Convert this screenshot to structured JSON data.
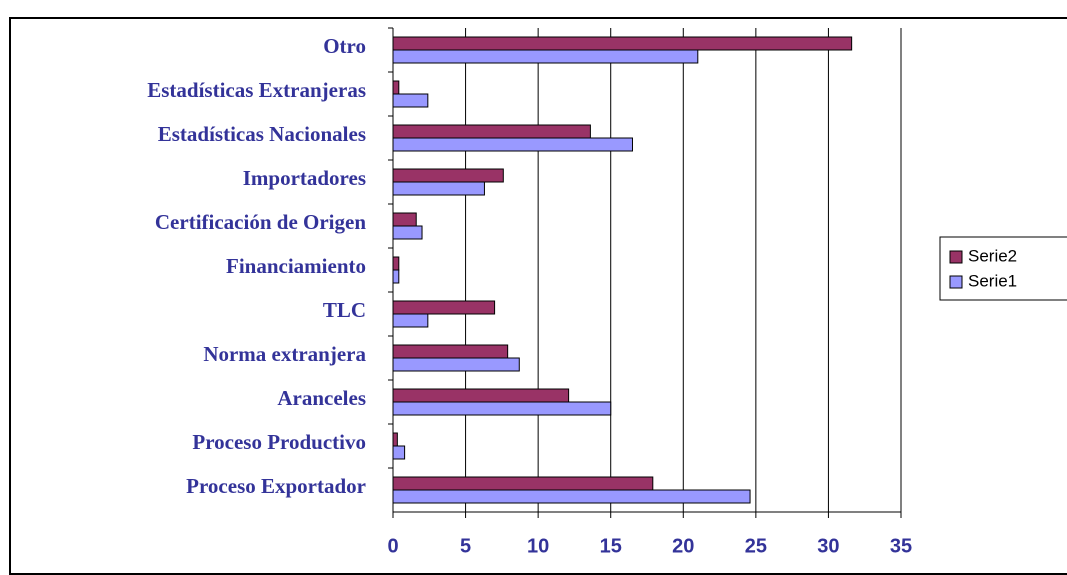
{
  "chart_data": {
    "type": "hbar",
    "categories": [
      "Proceso Exportador",
      "Proceso Productivo",
      "Aranceles",
      "Norma extranjera",
      "TLC",
      "Financiamiento",
      "Certificación de Origen",
      "Importadores",
      "Estadísticas Nacionales",
      "Estadísticas Extranjeras",
      "Otro"
    ],
    "series": [
      {
        "name": "Serie1",
        "color": "#9999ff",
        "values": [
          24.6,
          0.8,
          15.0,
          8.7,
          2.4,
          0.4,
          2.0,
          6.3,
          16.5,
          2.4,
          21.0
        ]
      },
      {
        "name": "Serie2",
        "color": "#993366",
        "values": [
          17.9,
          0.3,
          12.1,
          7.9,
          7.0,
          0.4,
          1.6,
          7.6,
          13.6,
          0.4,
          31.6
        ]
      }
    ],
    "xlim": [
      0,
      35
    ],
    "xticks": [
      0,
      5,
      10,
      15,
      20,
      25,
      30,
      35
    ],
    "grid": true,
    "legend": "right"
  }
}
